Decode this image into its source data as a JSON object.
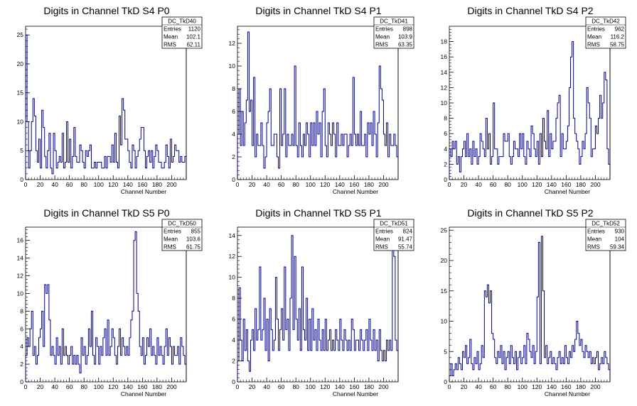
{
  "page": {
    "background": "#ffffff"
  },
  "style": {
    "histogram_color": "#00008b",
    "axis_color": "#000000"
  },
  "panels": [
    {
      "title": "Digits in Channel TkD S4 P0",
      "xlabel": "Channel Number",
      "stats": {
        "name": "DC_TkD40",
        "labels": [
          "Entries",
          "Mean",
          "RMS"
        ],
        "values": [
          "1120",
          "102.1",
          "62.11"
        ]
      },
      "xticks": [
        "0",
        "20",
        "40",
        "60",
        "80",
        "100",
        "120",
        "140",
        "160",
        "180",
        "200"
      ],
      "yticks": [
        "0",
        "5",
        "10",
        "15",
        "20",
        "25"
      ]
    },
    {
      "title": "Digits in Channel TkD S4 P1",
      "xlabel": "Channel Number",
      "stats": {
        "name": "DC_TkD41",
        "labels": [
          "Entries",
          "Mean",
          "RMS"
        ],
        "values": [
          "898",
          "103.9",
          "63.35"
        ]
      },
      "xticks": [
        "0",
        "20",
        "40",
        "60",
        "80",
        "100",
        "120",
        "140",
        "160",
        "180",
        "200"
      ],
      "yticks": [
        "0",
        "2",
        "4",
        "6",
        "8",
        "10",
        "12"
      ]
    },
    {
      "title": "Digits in Channel TkD S4 P2",
      "xlabel": "Channel Number",
      "stats": {
        "name": "DC_TkD42",
        "labels": [
          "Entries",
          "Mean",
          "RMS"
        ],
        "values": [
          "962",
          "116.2",
          "58.75"
        ]
      },
      "xticks": [
        "0",
        "20",
        "40",
        "60",
        "80",
        "100",
        "120",
        "140",
        "160",
        "180",
        "200"
      ],
      "yticks": [
        "0",
        "2",
        "4",
        "6",
        "8",
        "10",
        "12",
        "14",
        "16",
        "18"
      ]
    },
    {
      "title": "Digits in Channel TkD S5 P0",
      "xlabel": "Channel Number",
      "stats": {
        "name": "DC_TkD50",
        "labels": [
          "Entries",
          "Mean",
          "RMS"
        ],
        "values": [
          "855",
          "103.6",
          "61.75"
        ]
      },
      "xticks": [
        "0",
        "20",
        "40",
        "60",
        "80",
        "100",
        "120",
        "140",
        "160",
        "180",
        "200"
      ],
      "yticks": [
        "0",
        "2",
        "4",
        "6",
        "8",
        "10",
        "12",
        "14",
        "16"
      ]
    },
    {
      "title": "Digits in Channel TkD S5 P1",
      "xlabel": "Channel Number",
      "stats": {
        "name": "DC_TkD51",
        "labels": [
          "Entries",
          "Mean",
          "RMS"
        ],
        "values": [
          "824",
          "91.47",
          "55.74"
        ]
      },
      "xticks": [
        "0",
        "20",
        "40",
        "60",
        "80",
        "100",
        "120",
        "140",
        "160",
        "180",
        "200"
      ],
      "yticks": [
        "0",
        "2",
        "4",
        "6",
        "8",
        "10",
        "12",
        "14"
      ]
    },
    {
      "title": "Digits in Channel TkD S5 P2",
      "xlabel": "Channel Number",
      "stats": {
        "name": "DC_TkD52",
        "labels": [
          "Entries",
          "Mean",
          "RMS"
        ],
        "values": [
          "930",
          "104",
          "59.34"
        ]
      },
      "xticks": [
        "0",
        "20",
        "40",
        "60",
        "80",
        "100",
        "120",
        "140",
        "160",
        "180",
        "200"
      ],
      "yticks": [
        "0",
        "5",
        "10",
        "15",
        "20",
        "25"
      ]
    }
  ],
  "chart_data": [
    {
      "type": "bar",
      "histogram": true,
      "title": "Digits in Channel TkD S4 P0",
      "xlabel": "Channel Number",
      "ylabel": "",
      "xlim": [
        0,
        220
      ],
      "ylim": [
        0,
        26.5
      ],
      "bin_width": 2,
      "values": [
        25,
        10,
        2,
        5,
        10,
        14,
        11,
        5,
        3,
        7,
        2,
        12,
        9,
        4,
        2,
        5,
        8,
        2,
        1,
        8,
        5,
        2,
        3,
        4,
        3,
        8,
        2,
        3,
        10,
        3,
        7,
        2,
        4,
        9,
        4,
        3,
        3,
        6,
        5,
        3,
        2,
        5,
        4,
        5,
        6,
        2,
        2,
        3,
        2,
        3,
        3,
        3,
        2,
        2,
        4,
        2,
        4,
        4,
        3,
        6,
        3,
        8,
        3,
        2,
        11,
        6,
        14,
        12,
        7,
        7,
        5,
        3,
        2,
        6,
        5,
        2,
        4,
        5,
        7,
        9,
        9,
        5,
        2,
        4,
        5,
        3,
        5,
        2,
        4,
        6,
        5,
        3,
        3,
        2,
        2,
        3,
        6,
        4,
        2,
        7,
        3,
        4,
        6,
        5,
        5,
        3,
        4,
        3,
        3,
        4,
        3
      ]
    },
    {
      "type": "bar",
      "histogram": true,
      "title": "Digits in Channel TkD S4 P1",
      "xlabel": "Channel Number",
      "ylabel": "",
      "xlim": [
        0,
        220
      ],
      "ylim": [
        0,
        13.5
      ],
      "bin_width": 2,
      "values": [
        4,
        8,
        3,
        6,
        3,
        5,
        7,
        13,
        6,
        7,
        3,
        9,
        2,
        4,
        3,
        3,
        5,
        3,
        1,
        2,
        5,
        6,
        8,
        3,
        3,
        4,
        4,
        2,
        1,
        8,
        3,
        4,
        8,
        2,
        4,
        3,
        3,
        4,
        3,
        10,
        3,
        2,
        5,
        3,
        2,
        4,
        3,
        5,
        4,
        2,
        5,
        3,
        5,
        3,
        6,
        4,
        5,
        2,
        6,
        8,
        3,
        2,
        5,
        4,
        3,
        5,
        4,
        2,
        5,
        3,
        3,
        4,
        3,
        4,
        4,
        2,
        3,
        4,
        3,
        9,
        4,
        3,
        4,
        3,
        6,
        3,
        3,
        4,
        2,
        5,
        4,
        5,
        3,
        6,
        4,
        2,
        5,
        10,
        8,
        7,
        4,
        3,
        5,
        2,
        4,
        3,
        3,
        4,
        3,
        2,
        3
      ]
    },
    {
      "type": "bar",
      "histogram": true,
      "title": "Digits in Channel TkD S4 P2",
      "xlabel": "Channel Number",
      "ylabel": "",
      "xlim": [
        0,
        220
      ],
      "ylim": [
        0,
        20
      ],
      "bin_width": 2,
      "values": [
        4,
        3,
        5,
        4,
        5,
        2,
        3,
        1,
        3,
        4,
        5,
        3,
        6,
        3,
        4,
        2,
        5,
        3,
        4,
        2,
        3,
        6,
        5,
        4,
        3,
        8,
        4,
        6,
        2,
        3,
        10,
        4,
        4,
        2,
        3,
        3,
        3,
        6,
        5,
        5,
        6,
        3,
        2,
        3,
        5,
        4,
        4,
        3,
        6,
        4,
        6,
        3,
        2,
        5,
        4,
        3,
        7,
        6,
        4,
        3,
        5,
        2,
        6,
        3,
        8,
        5,
        4,
        9,
        3,
        6,
        4,
        5,
        5,
        8,
        10,
        11,
        3,
        6,
        4,
        4,
        5,
        7,
        12,
        16,
        18,
        8,
        6,
        5,
        4,
        2,
        3,
        5,
        4,
        6,
        12,
        10,
        8,
        3,
        4,
        4,
        7,
        6,
        8,
        11,
        8,
        10,
        14,
        13,
        4,
        2,
        1
      ]
    },
    {
      "type": "bar",
      "histogram": true,
      "title": "Digits in Channel TkD S5 P0",
      "xlabel": "Channel Number",
      "ylabel": "",
      "xlim": [
        0,
        220
      ],
      "ylim": [
        0,
        17.5
      ],
      "bin_width": 2,
      "values": [
        3,
        5,
        4,
        6,
        8,
        3,
        4,
        2,
        3,
        5,
        6,
        8,
        4,
        11,
        10,
        11,
        7,
        3,
        4,
        3,
        2,
        5,
        3,
        4,
        2,
        6,
        3,
        4,
        3,
        2,
        3,
        4,
        2,
        3,
        2,
        3,
        2,
        1,
        5,
        3,
        4,
        2,
        3,
        6,
        4,
        8,
        3,
        2,
        5,
        4,
        2,
        4,
        3,
        5,
        6,
        3,
        7,
        3,
        4,
        6,
        5,
        3,
        2,
        4,
        6,
        3,
        5,
        4,
        3,
        4,
        3,
        5,
        7,
        8,
        16,
        17,
        10,
        8,
        4,
        3,
        5,
        2,
        3,
        5,
        4,
        6,
        3,
        4,
        3,
        2,
        5,
        3,
        4,
        3,
        2,
        4,
        6,
        3,
        5,
        4,
        2,
        4,
        3,
        3,
        4,
        2,
        5,
        4,
        3,
        2,
        5
      ]
    },
    {
      "type": "bar",
      "histogram": true,
      "title": "Digits in Channel TkD S5 P1",
      "xlabel": "Channel Number",
      "ylabel": "",
      "xlim": [
        0,
        220
      ],
      "ylim": [
        0,
        14.8
      ],
      "bin_width": 2,
      "values": [
        2,
        9,
        4,
        2,
        6,
        3,
        5,
        2,
        1,
        4,
        5,
        3,
        7,
        4,
        5,
        11,
        4,
        5,
        8,
        3,
        6,
        2,
        7,
        5,
        3,
        4,
        10,
        6,
        3,
        5,
        7,
        4,
        11,
        5,
        6,
        3,
        8,
        14,
        5,
        12,
        6,
        4,
        7,
        3,
        11,
        5,
        4,
        8,
        3,
        6,
        3,
        7,
        4,
        5,
        3,
        6,
        4,
        3,
        5,
        3,
        6,
        3,
        4,
        5,
        3,
        4,
        3,
        5,
        4,
        3,
        6,
        4,
        3,
        5,
        4,
        3,
        4,
        3,
        6,
        5,
        3,
        4,
        4,
        3,
        5,
        4,
        3,
        4,
        5,
        3,
        6,
        4,
        3,
        5,
        3,
        4,
        2,
        5,
        3,
        2,
        3,
        2,
        4,
        3,
        4,
        3,
        13,
        12,
        4,
        3,
        2
      ]
    },
    {
      "type": "bar",
      "histogram": true,
      "title": "Digits in Channel TkD S5 P2",
      "xlabel": "Channel Number",
      "ylabel": "",
      "xlim": [
        0,
        220
      ],
      "ylim": [
        0,
        25.5
      ],
      "bin_width": 2,
      "values": [
        1,
        3,
        1,
        2,
        3,
        2,
        4,
        3,
        2,
        5,
        4,
        6,
        3,
        4,
        7,
        3,
        2,
        4,
        3,
        5,
        2,
        3,
        6,
        4,
        15,
        14,
        16,
        13,
        15,
        8,
        7,
        4,
        3,
        5,
        4,
        6,
        3,
        5,
        2,
        4,
        5,
        3,
        6,
        4,
        3,
        5,
        2,
        4,
        5,
        3,
        4,
        6,
        3,
        8,
        7,
        5,
        4,
        6,
        3,
        5,
        14,
        23,
        3,
        24,
        15,
        4,
        6,
        3,
        4,
        5,
        3,
        4,
        3,
        2,
        4,
        5,
        3,
        4,
        3,
        6,
        4,
        3,
        5,
        4,
        6,
        5,
        7,
        10,
        8,
        6,
        7,
        5,
        4,
        6,
        5,
        4,
        5,
        3,
        4,
        3,
        4,
        5,
        2,
        3,
        4,
        3,
        5,
        4,
        3,
        2,
        1
      ]
    }
  ]
}
